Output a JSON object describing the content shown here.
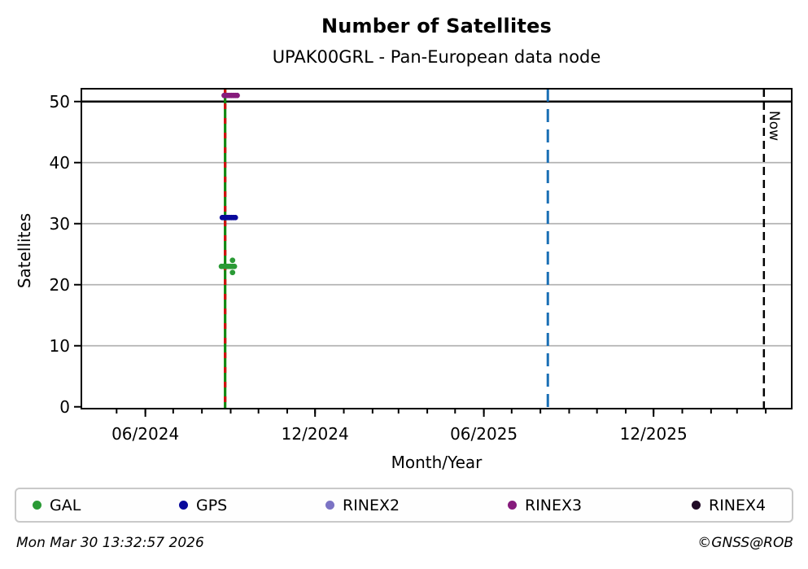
{
  "header": {
    "title": "Number of Satellites",
    "subtitle": "UPAK00GRL - Pan-European data node"
  },
  "footer": {
    "left": "Mon Mar 30 13:32:57 2026",
    "right": "©GNSS@ROB"
  },
  "chart_data": {
    "type": "scatter",
    "title": "Number of Satellites",
    "subtitle": "UPAK00GRL - Pan-European data node",
    "xlabel": "Month/Year",
    "ylabel": "Satellites",
    "xlim": [
      "2024-03-24",
      "2026-04-29"
    ],
    "ylim": [
      -0.3,
      52.1
    ],
    "yticks": [
      0,
      10,
      20,
      30,
      40,
      50
    ],
    "gridded_yticks": [
      10,
      20,
      30,
      40
    ],
    "grid_color": "#b3b3b3",
    "xticks": [
      {
        "date": "2024-06-01",
        "label": "06/2024"
      },
      {
        "date": "2024-12-01",
        "label": "12/2024"
      },
      {
        "date": "2025-06-01",
        "label": "06/2025"
      },
      {
        "date": "2025-12-01",
        "label": "12/2025"
      }
    ],
    "minor_xticks": "monthly",
    "hlines": [
      {
        "y": 50,
        "color": "#000000",
        "width": 2.4
      }
    ],
    "vlines": [
      {
        "name": "data-epoch-line",
        "date": "2024-08-26",
        "color": "#128812",
        "width": 3.2,
        "dash": null,
        "overlay_color": "#d01010",
        "overlay_dash": "7 11",
        "label": null
      },
      {
        "name": "forecast-line",
        "date": "2025-08-09",
        "color": "#1a6fb5",
        "width": 3,
        "dash": "16 9",
        "label": null
      },
      {
        "name": "now-line",
        "date": "2026-03-30",
        "color": "#000000",
        "width": 2.5,
        "dash": "10 6",
        "label": "Now"
      }
    ],
    "marker_radius": 3.4,
    "series": [
      {
        "name": "GAL",
        "color": "#2a9a35",
        "points": [
          [
            "2024-08-22",
            23
          ],
          [
            "2024-08-24",
            23
          ],
          [
            "2024-08-26",
            23
          ],
          [
            "2024-08-28",
            23
          ],
          [
            "2024-08-30",
            23
          ],
          [
            "2024-09-01",
            23
          ],
          [
            "2024-09-03",
            23
          ],
          [
            "2024-09-05",
            23
          ],
          [
            "2024-09-03",
            24
          ],
          [
            "2024-09-03",
            22
          ]
        ]
      },
      {
        "name": "GPS",
        "color": "#09099b",
        "points": [
          [
            "2024-08-23",
            31
          ],
          [
            "2024-08-25",
            31
          ],
          [
            "2024-08-27",
            31
          ],
          [
            "2024-08-29",
            31
          ],
          [
            "2024-08-31",
            31
          ],
          [
            "2024-09-02",
            31
          ],
          [
            "2024-09-04",
            31
          ],
          [
            "2024-09-06",
            31
          ]
        ]
      },
      {
        "name": "RINEX2",
        "color": "#7b73c4",
        "points": []
      },
      {
        "name": "RINEX3",
        "color": "#861b7c",
        "points": [
          [
            "2024-08-25",
            51
          ],
          [
            "2024-08-27",
            51
          ],
          [
            "2024-08-29",
            51
          ],
          [
            "2024-08-31",
            51
          ],
          [
            "2024-09-02",
            51
          ],
          [
            "2024-09-04",
            51
          ],
          [
            "2024-09-06",
            51
          ],
          [
            "2024-09-08",
            51
          ]
        ]
      },
      {
        "name": "RINEX4",
        "color": "#200b26",
        "points": []
      }
    ],
    "legend": {
      "position": "bottom",
      "entries": [
        "GAL",
        "GPS",
        "RINEX2",
        "RINEX3",
        "RINEX4"
      ]
    }
  }
}
